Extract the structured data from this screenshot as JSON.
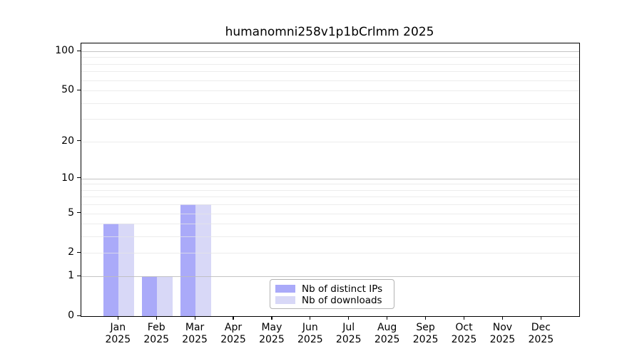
{
  "figure": {
    "background": "#ffffff"
  },
  "chart_data": {
    "type": "bar",
    "title": "humanomni258v1p1bCrlmm 2025",
    "categories": [
      "Jan",
      "Feb",
      "Mar",
      "Apr",
      "May",
      "Jun",
      "Jul",
      "Aug",
      "Sep",
      "Oct",
      "Nov",
      "Dec"
    ],
    "category_year": "2025",
    "series": [
      {
        "name": "Nb of distinct IPs",
        "color": "#aaaaf9",
        "values": [
          4,
          1,
          6,
          0,
          0,
          0,
          0,
          0,
          0,
          0,
          0,
          0
        ]
      },
      {
        "name": "Nb of downloads",
        "color": "#d8d8f7",
        "values": [
          4,
          1,
          6,
          0,
          0,
          0,
          0,
          0,
          0,
          0,
          0,
          0
        ]
      }
    ],
    "yscale": "log1p",
    "ylim": [
      0,
      115
    ],
    "yticks": [
      0,
      1,
      2,
      5,
      10,
      20,
      50,
      100
    ],
    "major_gridlines": [
      1,
      10,
      100
    ],
    "minor_gridlines": [
      2,
      3,
      4,
      5,
      6,
      7,
      8,
      9,
      20,
      30,
      40,
      50,
      60,
      70,
      80,
      90
    ],
    "grid": true,
    "legend_position": "lower-center-inside",
    "xlabel": "",
    "ylabel": ""
  },
  "colors": {
    "spine": "#000000",
    "major_grid": "rgba(190,190,190,0.9)",
    "minor_grid": "rgba(230,230,230,0.75)",
    "text": "#000000",
    "legend_border": "#b3b3b3"
  }
}
